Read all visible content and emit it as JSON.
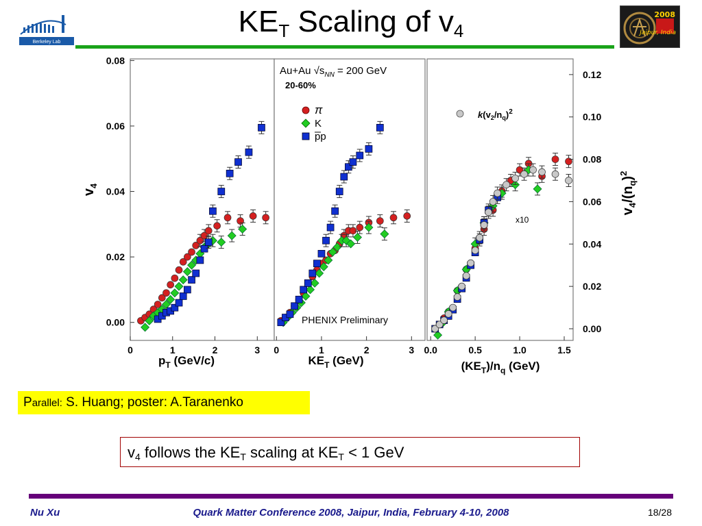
{
  "slide": {
    "title_main": "KE",
    "title_sub": "T",
    "title_rest": " Scaling of v",
    "title_sub2": "4",
    "logo_left_text": "Berkeley Lab",
    "logo_right_year": "2008",
    "logo_right_city": "Jaipur, India",
    "parallel_prefix": "P",
    "parallel_small": "arallel:",
    "parallel_rest": " S. Huang; poster:  A.Taranenko",
    "result_a": "v",
    "result_a_sub": "4",
    "result_b": " follows the KE",
    "result_b_sub": "T",
    "result_c": " scaling at KE",
    "result_c_sub": "T",
    "result_d": " < 1 GeV",
    "footer_author": "Nu Xu",
    "footer_conf": "Quark Matter Conference 2008, Jaipur, India, February 4-10, 2008",
    "footer_page": "18/28"
  },
  "chart_data": [
    {
      "type": "scatter",
      "panel": "left",
      "xlabel": "pT (GeV/c)",
      "ylabel": "v4",
      "xlim": [
        0,
        3.4
      ],
      "ylim": [
        -0.0055,
        0.0805
      ],
      "xticks": [
        0,
        1,
        2,
        3
      ],
      "yticks": [
        0.0,
        0.02,
        0.04,
        0.06,
        0.08
      ],
      "ytick_labels": [
        "0.00",
        "0.02",
        "0.04",
        "0.06",
        "0.08"
      ],
      "series": [
        {
          "name": "π",
          "marker": "circle",
          "color": "#d42020",
          "x": [
            0.25,
            0.35,
            0.45,
            0.55,
            0.65,
            0.75,
            0.85,
            0.95,
            1.05,
            1.15,
            1.25,
            1.35,
            1.45,
            1.55,
            1.65,
            1.75,
            1.85,
            2.05,
            2.3,
            2.6,
            2.9,
            3.2
          ],
          "y": [
            0.0005,
            0.0015,
            0.0025,
            0.004,
            0.0055,
            0.0075,
            0.009,
            0.0115,
            0.0135,
            0.016,
            0.0185,
            0.02,
            0.0215,
            0.0235,
            0.025,
            0.0265,
            0.028,
            0.0295,
            0.032,
            0.031,
            0.0325,
            0.032
          ]
        },
        {
          "name": "K",
          "marker": "diamond",
          "color": "#22cc22",
          "x": [
            0.35,
            0.45,
            0.55,
            0.65,
            0.75,
            0.85,
            0.95,
            1.05,
            1.15,
            1.25,
            1.35,
            1.45,
            1.55,
            1.65,
            1.75,
            1.85,
            1.95,
            2.15,
            2.4,
            2.65
          ],
          "y": [
            -0.0015,
            0.0005,
            0.002,
            0.003,
            0.004,
            0.0055,
            0.007,
            0.009,
            0.011,
            0.013,
            0.0155,
            0.0175,
            0.019,
            0.021,
            0.023,
            0.024,
            0.025,
            0.0245,
            0.0265,
            0.0285
          ]
        },
        {
          "name": "pp",
          "marker": "square",
          "color": "#1030d0",
          "x": [
            0.65,
            0.75,
            0.85,
            0.95,
            1.05,
            1.15,
            1.25,
            1.35,
            1.45,
            1.55,
            1.65,
            1.75,
            1.85,
            1.95,
            2.15,
            2.35,
            2.55,
            2.8,
            3.1
          ],
          "y": [
            0.001,
            0.002,
            0.003,
            0.0035,
            0.0045,
            0.006,
            0.008,
            0.01,
            0.013,
            0.015,
            0.019,
            0.0225,
            0.0245,
            0.034,
            0.04,
            0.0455,
            0.049,
            0.052,
            0.0595
          ]
        }
      ]
    },
    {
      "type": "scatter",
      "panel": "middle",
      "xlabel": "KET (GeV)",
      "xlim": [
        -0.05,
        3.3
      ],
      "ylim": [
        -0.0055,
        0.0805
      ],
      "xticks": [
        0,
        1,
        2,
        3
      ],
      "annotations": [
        "Au+Au √sNN = 200 GeV",
        "20-60%",
        "PHENIX Preliminary"
      ],
      "series": [
        {
          "name": "π",
          "marker": "circle",
          "color": "#d42020",
          "x": [
            0.1,
            0.2,
            0.3,
            0.4,
            0.5,
            0.6,
            0.7,
            0.8,
            0.9,
            1.0,
            1.1,
            1.2,
            1.3,
            1.4,
            1.5,
            1.6,
            1.7,
            1.85,
            2.05,
            2.3,
            2.6,
            2.9
          ],
          "y": [
            0.0005,
            0.0015,
            0.003,
            0.005,
            0.007,
            0.009,
            0.012,
            0.014,
            0.016,
            0.018,
            0.019,
            0.021,
            0.022,
            0.024,
            0.0265,
            0.028,
            0.028,
            0.029,
            0.0305,
            0.031,
            0.032,
            0.0325
          ]
        },
        {
          "name": "K",
          "marker": "diamond",
          "color": "#22cc22",
          "x": [
            0.15,
            0.25,
            0.35,
            0.45,
            0.55,
            0.65,
            0.75,
            0.85,
            0.95,
            1.05,
            1.15,
            1.25,
            1.35,
            1.45,
            1.55,
            1.65,
            1.8,
            2.05,
            2.4
          ],
          "y": [
            0.0,
            0.0015,
            0.003,
            0.0045,
            0.006,
            0.008,
            0.01,
            0.012,
            0.015,
            0.017,
            0.019,
            0.0215,
            0.023,
            0.025,
            0.025,
            0.024,
            0.026,
            0.029,
            0.027
          ]
        },
        {
          "name": "pp",
          "marker": "square",
          "color": "#1030d0",
          "x": [
            0.1,
            0.2,
            0.3,
            0.4,
            0.5,
            0.6,
            0.7,
            0.8,
            0.9,
            1.0,
            1.1,
            1.2,
            1.3,
            1.4,
            1.5,
            1.6,
            1.7,
            1.85,
            2.05,
            2.3
          ],
          "y": [
            0.0,
            0.0015,
            0.0025,
            0.005,
            0.007,
            0.01,
            0.012,
            0.015,
            0.018,
            0.021,
            0.025,
            0.029,
            0.034,
            0.04,
            0.0445,
            0.0475,
            0.049,
            0.051,
            0.053,
            0.0595
          ]
        }
      ]
    },
    {
      "type": "scatter",
      "panel": "right",
      "xlabel": "(KET)/nq (GeV)",
      "ylabel": "v4/(nq)^2",
      "xlim": [
        -0.04,
        1.6
      ],
      "ylim": [
        -0.0055,
        0.1274
      ],
      "xticks": [
        0.0,
        0.5,
        1.0,
        1.5
      ],
      "xtick_labels": [
        "0.0",
        "0.5",
        "1.0",
        "1.5"
      ],
      "yticks": [
        0.0,
        0.02,
        0.04,
        0.06,
        0.08,
        0.1,
        0.12
      ],
      "ytick_labels": [
        "0.00",
        "0.02",
        "0.04",
        "0.06",
        "0.08",
        "0.10",
        "0.12"
      ],
      "annotations": [
        "x10"
      ],
      "series": [
        {
          "name": "π",
          "marker": "circle",
          "color": "#d42020",
          "x": [
            0.05,
            0.1,
            0.15,
            0.2,
            0.3,
            0.4,
            0.5,
            0.6,
            0.7,
            0.8,
            0.9,
            1.0,
            1.1,
            1.25,
            1.4,
            1.55
          ],
          "y": [
            0.0,
            0.002,
            0.005,
            0.008,
            0.018,
            0.028,
            0.038,
            0.047,
            0.056,
            0.065,
            0.07,
            0.075,
            0.078,
            0.072,
            0.08,
            0.079
          ]
        },
        {
          "name": "K",
          "marker": "diamond",
          "color": "#22cc22",
          "x": [
            0.08,
            0.14,
            0.2,
            0.3,
            0.4,
            0.5,
            0.6,
            0.7,
            0.8,
            0.95,
            1.1,
            1.2
          ],
          "y": [
            -0.003,
            0.003,
            0.008,
            0.018,
            0.028,
            0.04,
            0.05,
            0.058,
            0.064,
            0.068,
            0.075,
            0.066
          ]
        },
        {
          "name": "pp",
          "marker": "square",
          "color": "#1030d0",
          "x": [
            0.05,
            0.1,
            0.15,
            0.2,
            0.25,
            0.3,
            0.35,
            0.4,
            0.45,
            0.5,
            0.55,
            0.6,
            0.65,
            0.75
          ],
          "y": [
            0.0,
            0.002,
            0.004,
            0.006,
            0.009,
            0.014,
            0.019,
            0.024,
            0.03,
            0.036,
            0.042,
            0.05,
            0.056,
            0.062
          ]
        },
        {
          "name": "k(v2/nq)^2",
          "marker": "circle",
          "color": "#c8c8c8",
          "x": [
            0.05,
            0.1,
            0.15,
            0.2,
            0.25,
            0.3,
            0.35,
            0.4,
            0.45,
            0.5,
            0.55,
            0.6,
            0.65,
            0.7,
            0.75,
            0.85,
            0.95,
            1.05,
            1.15,
            1.25,
            1.4,
            1.55
          ],
          "y": [
            0.0,
            0.002,
            0.004,
            0.007,
            0.01,
            0.015,
            0.02,
            0.025,
            0.031,
            0.037,
            0.043,
            0.049,
            0.055,
            0.06,
            0.064,
            0.068,
            0.071,
            0.073,
            0.075,
            0.074,
            0.073,
            0.07
          ]
        }
      ]
    }
  ],
  "legend": [
    {
      "label": "π",
      "marker": "circle",
      "color": "#d42020"
    },
    {
      "label": "K",
      "marker": "diamond",
      "color": "#22cc22"
    },
    {
      "label": "pp",
      "marker": "square",
      "color": "#1030d0"
    }
  ],
  "legend_right": {
    "label": "k(v2/nq)2",
    "marker": "circle",
    "color": "#c8c8c8"
  }
}
